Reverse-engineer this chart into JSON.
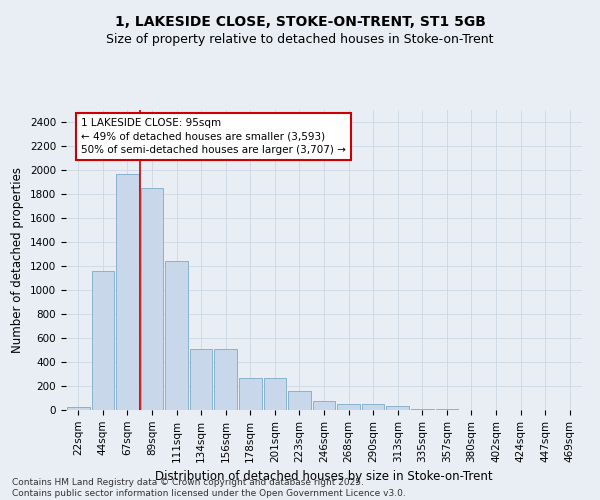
{
  "title": "1, LAKESIDE CLOSE, STOKE-ON-TRENT, ST1 5GB",
  "subtitle": "Size of property relative to detached houses in Stoke-on-Trent",
  "xlabel": "Distribution of detached houses by size in Stoke-on-Trent",
  "ylabel": "Number of detached properties",
  "categories": [
    "22sqm",
    "44sqm",
    "67sqm",
    "89sqm",
    "111sqm",
    "134sqm",
    "156sqm",
    "178sqm",
    "201sqm",
    "223sqm",
    "246sqm",
    "268sqm",
    "290sqm",
    "313sqm",
    "335sqm",
    "357sqm",
    "380sqm",
    "402sqm",
    "424sqm",
    "447sqm",
    "469sqm"
  ],
  "values": [
    25,
    1160,
    1970,
    1850,
    1240,
    510,
    510,
    270,
    265,
    155,
    75,
    50,
    50,
    35,
    10,
    6,
    4,
    2,
    1,
    1,
    1
  ],
  "bar_color": "#c8d8ea",
  "bar_edge_color": "#7aaac8",
  "red_line_x": 2.5,
  "annotation_text": "1 LAKESIDE CLOSE: 95sqm\n← 49% of detached houses are smaller (3,593)\n50% of semi-detached houses are larger (3,707) →",
  "annotation_box_color": "#ffffff",
  "annotation_box_edge": "#cc0000",
  "ylim": [
    0,
    2500
  ],
  "yticks": [
    0,
    200,
    400,
    600,
    800,
    1000,
    1200,
    1400,
    1600,
    1800,
    2000,
    2200,
    2400
  ],
  "grid_color": "#ccd8e4",
  "background_color": "#e8eef4",
  "footer_line1": "Contains HM Land Registry data © Crown copyright and database right 2025.",
  "footer_line2": "Contains public sector information licensed under the Open Government Licence v3.0.",
  "title_fontsize": 10,
  "subtitle_fontsize": 9,
  "axis_label_fontsize": 8.5,
  "tick_fontsize": 7.5,
  "footer_fontsize": 6.5,
  "annotation_fontsize": 7.5
}
